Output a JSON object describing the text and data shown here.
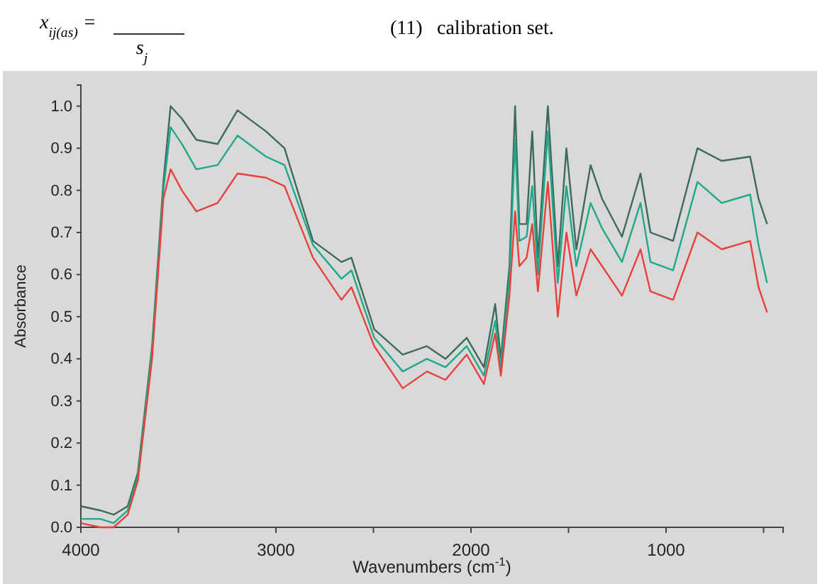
{
  "chart_data": {
    "type": "line",
    "xlabel": "Wavenumbers (cm$^{-1}$)",
    "ylabel": "Absorbance",
    "annotations": [
      "x$_{ij(as)}$ =",
      "s$_{j}$",
      "(11)",
      "calibration set."
    ],
    "x": [
      4000,
      3900,
      3832,
      3760,
      3708,
      3635,
      3577,
      3540,
      3482,
      3408,
      3299,
      3197,
      3051,
      2956,
      2810,
      2664,
      2613,
      2496,
      2350,
      2226,
      2131,
      2022,
      1934,
      1876,
      1847,
      1803,
      1774,
      1752,
      1715,
      1686,
      1657,
      1606,
      1555,
      1511,
      1460,
      1387,
      1328,
      1226,
      1131,
      1080,
      964,
      839,
      715,
      569,
      526,
      482
    ],
    "series": [
      {
        "color": "#3d6b5a",
        "values": [
          0.05,
          0.04,
          0.03,
          0.05,
          0.13,
          0.43,
          0.82,
          1.0,
          0.97,
          0.92,
          0.91,
          0.99,
          0.94,
          0.9,
          0.68,
          0.63,
          0.64,
          0.47,
          0.41,
          0.43,
          0.4,
          0.45,
          0.38,
          0.53,
          0.4,
          0.62,
          1.0,
          0.72,
          0.72,
          0.94,
          0.64,
          1.0,
          0.62,
          0.9,
          0.66,
          0.86,
          0.78,
          0.69,
          0.84,
          0.7,
          0.68,
          0.9,
          0.87,
          0.88,
          0.78,
          0.72
        ]
      },
      {
        "color": "#1fa88c",
        "values": [
          0.02,
          0.02,
          0.01,
          0.04,
          0.12,
          0.42,
          0.8,
          0.95,
          0.91,
          0.85,
          0.86,
          0.93,
          0.88,
          0.86,
          0.67,
          0.59,
          0.61,
          0.45,
          0.37,
          0.4,
          0.38,
          0.43,
          0.36,
          0.49,
          0.38,
          0.59,
          0.92,
          0.68,
          0.69,
          0.81,
          0.6,
          0.94,
          0.58,
          0.81,
          0.62,
          0.77,
          0.71,
          0.63,
          0.77,
          0.63,
          0.61,
          0.82,
          0.77,
          0.79,
          0.67,
          0.58
        ]
      },
      {
        "color": "#e8413c",
        "values": [
          0.01,
          0.0,
          0.0,
          0.03,
          0.11,
          0.4,
          0.78,
          0.85,
          0.8,
          0.75,
          0.77,
          0.84,
          0.83,
          0.81,
          0.64,
          0.54,
          0.57,
          0.43,
          0.33,
          0.37,
          0.35,
          0.41,
          0.34,
          0.46,
          0.36,
          0.55,
          0.75,
          0.62,
          0.64,
          0.72,
          0.56,
          0.82,
          0.5,
          0.7,
          0.55,
          0.66,
          0.62,
          0.55,
          0.66,
          0.56,
          0.54,
          0.7,
          0.66,
          0.68,
          0.57,
          0.51
        ]
      }
    ],
    "xlim": [
      4000,
      400
    ],
    "xticks": [
      4000,
      {
        "value": 3500,
        "label": null
      },
      3000,
      {
        "value": 2500,
        "label": null
      },
      2000,
      {
        "value": 1500,
        "label": null
      },
      1000,
      {
        "value": 500,
        "label": null
      }
    ],
    "ylim": [
      0,
      1.05
    ],
    "yticks": [
      {
        "value": 0,
        "label": "0.0"
      },
      0.1,
      0.2,
      0.3,
      0.4,
      0.5,
      0.6,
      0.7,
      0.8,
      0.9,
      {
        "value": 1,
        "label": "1.0"
      }
    ],
    "grid": false,
    "marker": "none",
    "line_style": "solid"
  }
}
